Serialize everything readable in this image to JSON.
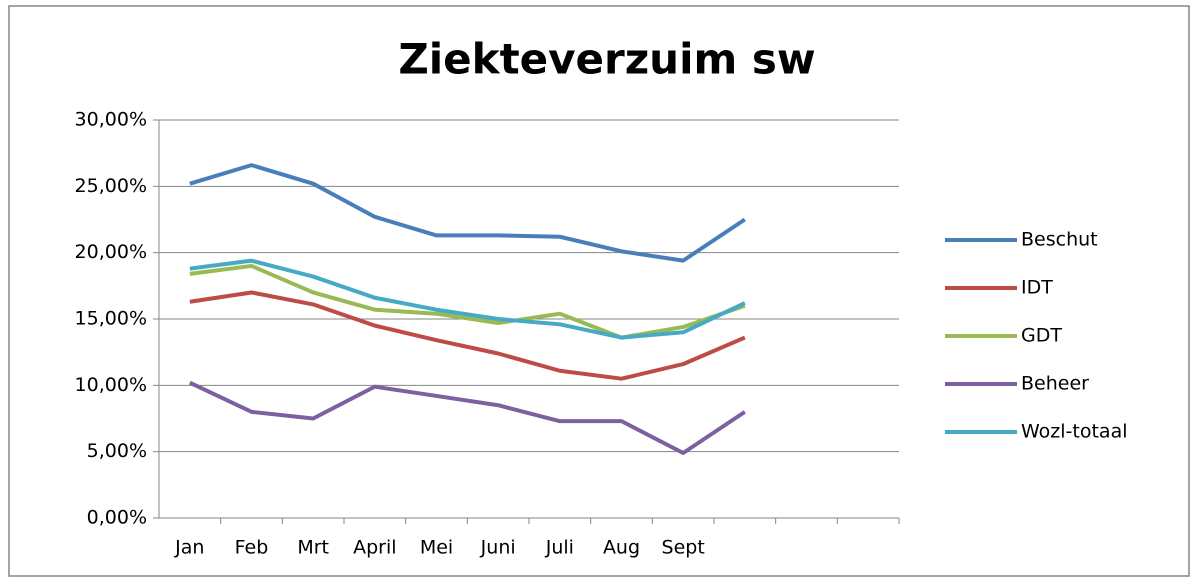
{
  "chart_data": {
    "type": "line",
    "title": "Ziekteverzuim sw",
    "categories": [
      "Jan",
      "Feb",
      "Mrt",
      "April",
      "Mei",
      "Juni",
      "Juli",
      "Aug",
      "Sept",
      null,
      null,
      null
    ],
    "series": [
      {
        "name": "Beschut",
        "color": "#4a7ebb",
        "values": [
          25.2,
          26.6,
          25.2,
          22.7,
          21.3,
          21.3,
          21.2,
          20.1,
          19.4,
          22.5,
          null,
          null
        ]
      },
      {
        "name": "IDT",
        "color": "#be4b48",
        "values": [
          16.3,
          17.0,
          16.1,
          14.5,
          13.4,
          12.4,
          11.1,
          10.5,
          11.6,
          13.6,
          null,
          null
        ]
      },
      {
        "name": "GDT",
        "color": "#98b954",
        "values": [
          18.4,
          19.0,
          17.0,
          15.7,
          15.4,
          14.7,
          15.4,
          13.6,
          14.4,
          16.0,
          null,
          null
        ]
      },
      {
        "name": "Beheer",
        "color": "#7d60a0",
        "values": [
          10.2,
          8.0,
          7.5,
          9.9,
          9.2,
          8.5,
          7.3,
          7.3,
          4.9,
          8.0,
          null,
          null
        ]
      },
      {
        "name": "Wozl-totaal",
        "color": "#46aac5",
        "values": [
          18.8,
          19.4,
          18.2,
          16.6,
          15.7,
          15.0,
          14.6,
          13.6,
          14.0,
          16.2,
          null,
          null
        ]
      }
    ],
    "ylim": [
      0,
      30
    ],
    "yticks": [
      {
        "value": 0,
        "label": "0,00%"
      },
      {
        "value": 5,
        "label": "5,00%"
      },
      {
        "value": 10,
        "label": "10,00%"
      },
      {
        "value": 15,
        "label": "15,00%"
      },
      {
        "value": 20,
        "label": "20,00%"
      },
      {
        "value": 25,
        "label": "25,00%"
      },
      {
        "value": 30,
        "label": "30,00%"
      }
    ],
    "grid": true,
    "legend": "right"
  }
}
